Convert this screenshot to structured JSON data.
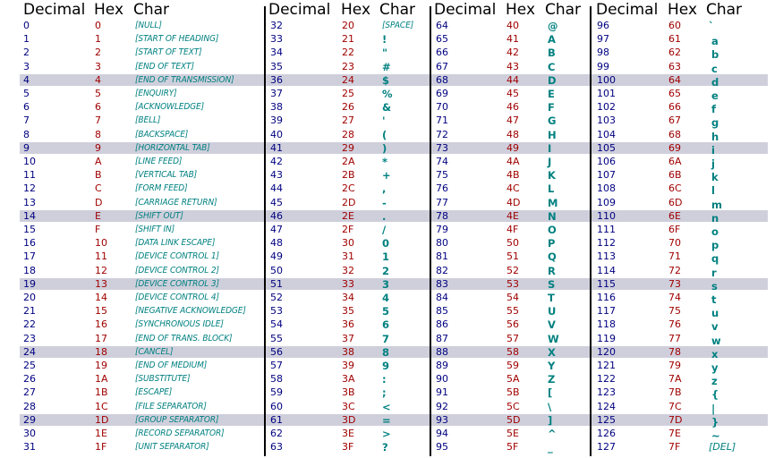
{
  "headers": {
    "decimal": "Decimal",
    "hex": "Hex",
    "char": "Char"
  },
  "colors": {
    "decimal": "#000080",
    "hex": "#a00000",
    "char": "#008080",
    "stripe": "#cfcfdc"
  },
  "blocks": [
    {
      "rows": [
        {
          "dec": "0",
          "hex": "0",
          "char": "[NULL]"
        },
        {
          "dec": "1",
          "hex": "1",
          "char": "[START OF HEADING]"
        },
        {
          "dec": "2",
          "hex": "2",
          "char": "[START OF TEXT]"
        },
        {
          "dec": "3",
          "hex": "3",
          "char": "[END OF TEXT]"
        },
        {
          "dec": "4",
          "hex": "4",
          "char": "[END OF TRANSMISSION]"
        },
        {
          "dec": "5",
          "hex": "5",
          "char": "[ENQUIRY]"
        },
        {
          "dec": "6",
          "hex": "6",
          "char": "[ACKNOWLEDGE]"
        },
        {
          "dec": "7",
          "hex": "7",
          "char": "[BELL]"
        },
        {
          "dec": "8",
          "hex": "8",
          "char": "[BACKSPACE]"
        },
        {
          "dec": "9",
          "hex": "9",
          "char": "[HORIZONTAL TAB]"
        },
        {
          "dec": "10",
          "hex": "A",
          "char": "[LINE FEED]"
        },
        {
          "dec": "11",
          "hex": "B",
          "char": "[VERTICAL TAB]"
        },
        {
          "dec": "12",
          "hex": "C",
          "char": "[FORM FEED]"
        },
        {
          "dec": "13",
          "hex": "D",
          "char": "[CARRIAGE RETURN]"
        },
        {
          "dec": "14",
          "hex": "E",
          "char": "[SHIFT OUT]"
        },
        {
          "dec": "15",
          "hex": "F",
          "char": "[SHIFT IN]"
        },
        {
          "dec": "16",
          "hex": "10",
          "char": "[DATA LINK ESCAPE]"
        },
        {
          "dec": "17",
          "hex": "11",
          "char": "[DEVICE CONTROL 1]"
        },
        {
          "dec": "18",
          "hex": "12",
          "char": "[DEVICE CONTROL 2]"
        },
        {
          "dec": "19",
          "hex": "13",
          "char": "[DEVICE CONTROL 3]"
        },
        {
          "dec": "20",
          "hex": "14",
          "char": "[DEVICE CONTROL 4]"
        },
        {
          "dec": "21",
          "hex": "15",
          "char": "[NEGATIVE ACKNOWLEDGE]"
        },
        {
          "dec": "22",
          "hex": "16",
          "char": "[SYNCHRONOUS IDLE]"
        },
        {
          "dec": "23",
          "hex": "17",
          "char": "[END OF TRANS. BLOCK]"
        },
        {
          "dec": "24",
          "hex": "18",
          "char": "[CANCEL]"
        },
        {
          "dec": "25",
          "hex": "19",
          "char": "[END OF MEDIUM]"
        },
        {
          "dec": "26",
          "hex": "1A",
          "char": "[SUBSTITUTE]"
        },
        {
          "dec": "27",
          "hex": "1B",
          "char": "[ESCAPE]"
        },
        {
          "dec": "28",
          "hex": "1C",
          "char": "[FILE SEPARATOR]"
        },
        {
          "dec": "29",
          "hex": "1D",
          "char": "[GROUP SEPARATOR]"
        },
        {
          "dec": "30",
          "hex": "1E",
          "char": "[RECORD SEPARATOR]"
        },
        {
          "dec": "31",
          "hex": "1F",
          "char": "[UNIT SEPARATOR]"
        }
      ]
    },
    {
      "rows": [
        {
          "dec": "32",
          "hex": "20",
          "char": "[SPACE]"
        },
        {
          "dec": "33",
          "hex": "21",
          "char": "!"
        },
        {
          "dec": "34",
          "hex": "22",
          "char": "\""
        },
        {
          "dec": "35",
          "hex": "23",
          "char": "#"
        },
        {
          "dec": "36",
          "hex": "24",
          "char": "$"
        },
        {
          "dec": "37",
          "hex": "25",
          "char": "%"
        },
        {
          "dec": "38",
          "hex": "26",
          "char": "&"
        },
        {
          "dec": "39",
          "hex": "27",
          "char": "'"
        },
        {
          "dec": "40",
          "hex": "28",
          "char": "("
        },
        {
          "dec": "41",
          "hex": "29",
          "char": ")"
        },
        {
          "dec": "42",
          "hex": "2A",
          "char": "*"
        },
        {
          "dec": "43",
          "hex": "2B",
          "char": "+"
        },
        {
          "dec": "44",
          "hex": "2C",
          "char": ","
        },
        {
          "dec": "45",
          "hex": "2D",
          "char": "-"
        },
        {
          "dec": "46",
          "hex": "2E",
          "char": "."
        },
        {
          "dec": "47",
          "hex": "2F",
          "char": "/"
        },
        {
          "dec": "48",
          "hex": "30",
          "char": "0"
        },
        {
          "dec": "49",
          "hex": "31",
          "char": "1"
        },
        {
          "dec": "50",
          "hex": "32",
          "char": "2"
        },
        {
          "dec": "51",
          "hex": "33",
          "char": "3"
        },
        {
          "dec": "52",
          "hex": "34",
          "char": "4"
        },
        {
          "dec": "53",
          "hex": "35",
          "char": "5"
        },
        {
          "dec": "54",
          "hex": "36",
          "char": "6"
        },
        {
          "dec": "55",
          "hex": "37",
          "char": "7"
        },
        {
          "dec": "56",
          "hex": "38",
          "char": "8"
        },
        {
          "dec": "57",
          "hex": "39",
          "char": "9"
        },
        {
          "dec": "58",
          "hex": "3A",
          "char": ":"
        },
        {
          "dec": "59",
          "hex": "3B",
          "char": ";"
        },
        {
          "dec": "60",
          "hex": "3C",
          "char": "<"
        },
        {
          "dec": "61",
          "hex": "3D",
          "char": "="
        },
        {
          "dec": "62",
          "hex": "3E",
          "char": ">"
        },
        {
          "dec": "63",
          "hex": "3F",
          "char": "?"
        }
      ]
    },
    {
      "rows": [
        {
          "dec": "64",
          "hex": "40",
          "char": "@"
        },
        {
          "dec": "65",
          "hex": "41",
          "char": "A"
        },
        {
          "dec": "66",
          "hex": "42",
          "char": "B"
        },
        {
          "dec": "67",
          "hex": "43",
          "char": "C"
        },
        {
          "dec": "68",
          "hex": "44",
          "char": "D"
        },
        {
          "dec": "69",
          "hex": "45",
          "char": "E"
        },
        {
          "dec": "70",
          "hex": "46",
          "char": "F"
        },
        {
          "dec": "71",
          "hex": "47",
          "char": "G"
        },
        {
          "dec": "72",
          "hex": "48",
          "char": "H"
        },
        {
          "dec": "73",
          "hex": "49",
          "char": "I"
        },
        {
          "dec": "74",
          "hex": "4A",
          "char": "J"
        },
        {
          "dec": "75",
          "hex": "4B",
          "char": "K"
        },
        {
          "dec": "76",
          "hex": "4C",
          "char": "L"
        },
        {
          "dec": "77",
          "hex": "4D",
          "char": "M"
        },
        {
          "dec": "78",
          "hex": "4E",
          "char": "N"
        },
        {
          "dec": "79",
          "hex": "4F",
          "char": "O"
        },
        {
          "dec": "80",
          "hex": "50",
          "char": "P"
        },
        {
          "dec": "81",
          "hex": "51",
          "char": "Q"
        },
        {
          "dec": "82",
          "hex": "52",
          "char": "R"
        },
        {
          "dec": "83",
          "hex": "53",
          "char": "S"
        },
        {
          "dec": "84",
          "hex": "54",
          "char": "T"
        },
        {
          "dec": "85",
          "hex": "55",
          "char": "U"
        },
        {
          "dec": "86",
          "hex": "56",
          "char": "V"
        },
        {
          "dec": "87",
          "hex": "57",
          "char": "W"
        },
        {
          "dec": "88",
          "hex": "58",
          "char": "X"
        },
        {
          "dec": "89",
          "hex": "59",
          "char": "Y"
        },
        {
          "dec": "90",
          "hex": "5A",
          "char": "Z"
        },
        {
          "dec": "91",
          "hex": "5B",
          "char": "["
        },
        {
          "dec": "92",
          "hex": "5C",
          "char": "\\"
        },
        {
          "dec": "93",
          "hex": "5D",
          "char": "]"
        },
        {
          "dec": "94",
          "hex": "5E",
          "char": "^"
        },
        {
          "dec": "95",
          "hex": "5F",
          "char": "_"
        }
      ]
    },
    {
      "rows": [
        {
          "dec": "96",
          "hex": "60",
          "char": "`"
        },
        {
          "dec": "97",
          "hex": "61",
          "char": "a"
        },
        {
          "dec": "98",
          "hex": "62",
          "char": "b"
        },
        {
          "dec": "99",
          "hex": "63",
          "char": "c"
        },
        {
          "dec": "100",
          "hex": "64",
          "char": "d"
        },
        {
          "dec": "101",
          "hex": "65",
          "char": "e"
        },
        {
          "dec": "102",
          "hex": "66",
          "char": "f"
        },
        {
          "dec": "103",
          "hex": "67",
          "char": "g"
        },
        {
          "dec": "104",
          "hex": "68",
          "char": "h"
        },
        {
          "dec": "105",
          "hex": "69",
          "char": "i"
        },
        {
          "dec": "106",
          "hex": "6A",
          "char": "j"
        },
        {
          "dec": "107",
          "hex": "6B",
          "char": "k"
        },
        {
          "dec": "108",
          "hex": "6C",
          "char": "l"
        },
        {
          "dec": "109",
          "hex": "6D",
          "char": "m"
        },
        {
          "dec": "110",
          "hex": "6E",
          "char": "n"
        },
        {
          "dec": "111",
          "hex": "6F",
          "char": "o"
        },
        {
          "dec": "112",
          "hex": "70",
          "char": "p"
        },
        {
          "dec": "113",
          "hex": "71",
          "char": "q"
        },
        {
          "dec": "114",
          "hex": "72",
          "char": "r"
        },
        {
          "dec": "115",
          "hex": "73",
          "char": "s"
        },
        {
          "dec": "116",
          "hex": "74",
          "char": "t"
        },
        {
          "dec": "117",
          "hex": "75",
          "char": "u"
        },
        {
          "dec": "118",
          "hex": "76",
          "char": "v"
        },
        {
          "dec": "119",
          "hex": "77",
          "char": "w"
        },
        {
          "dec": "120",
          "hex": "78",
          "char": "x"
        },
        {
          "dec": "121",
          "hex": "79",
          "char": "y"
        },
        {
          "dec": "122",
          "hex": "7A",
          "char": "z"
        },
        {
          "dec": "123",
          "hex": "7B",
          "char": "{"
        },
        {
          "dec": "124",
          "hex": "7C",
          "char": "|"
        },
        {
          "dec": "125",
          "hex": "7D",
          "char": "}"
        },
        {
          "dec": "126",
          "hex": "7E",
          "char": "~"
        },
        {
          "dec": "127",
          "hex": "7F",
          "char": "[DEL]"
        }
      ]
    }
  ]
}
